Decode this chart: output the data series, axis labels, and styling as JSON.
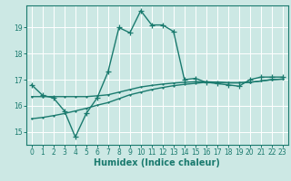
{
  "xlabel": "Humidex (Indice chaleur)",
  "ylabel": "",
  "background_color": "#cce8e4",
  "grid_color": "#ffffff",
  "line_color": "#1a7a6e",
  "x_ticks": [
    0,
    1,
    2,
    3,
    4,
    5,
    6,
    7,
    8,
    9,
    10,
    11,
    12,
    13,
    14,
    15,
    16,
    17,
    18,
    19,
    20,
    21,
    22,
    23
  ],
  "y_ticks": [
    15,
    16,
    17,
    18,
    19
  ],
  "ylim": [
    14.5,
    19.85
  ],
  "xlim": [
    -0.5,
    23.5
  ],
  "series": [
    [
      16.8,
      16.4,
      16.3,
      15.8,
      14.8,
      15.7,
      16.3,
      17.3,
      19.0,
      18.8,
      19.65,
      19.1,
      19.1,
      18.85,
      17.0,
      17.05,
      16.9,
      16.85,
      16.8,
      16.75,
      17.0,
      17.1,
      17.1,
      17.1
    ],
    [
      16.35,
      16.35,
      16.35,
      16.35,
      16.35,
      16.35,
      16.38,
      16.42,
      16.52,
      16.62,
      16.72,
      16.78,
      16.83,
      16.87,
      16.9,
      16.92,
      16.92,
      16.9,
      16.88,
      16.88,
      16.9,
      16.95,
      17.0,
      17.02
    ],
    [
      15.5,
      15.55,
      15.62,
      15.7,
      15.8,
      15.9,
      16.02,
      16.12,
      16.27,
      16.42,
      16.52,
      16.62,
      16.7,
      16.77,
      16.82,
      16.86,
      16.9,
      16.9,
      16.88,
      16.88,
      16.9,
      16.95,
      17.0,
      17.02
    ]
  ]
}
